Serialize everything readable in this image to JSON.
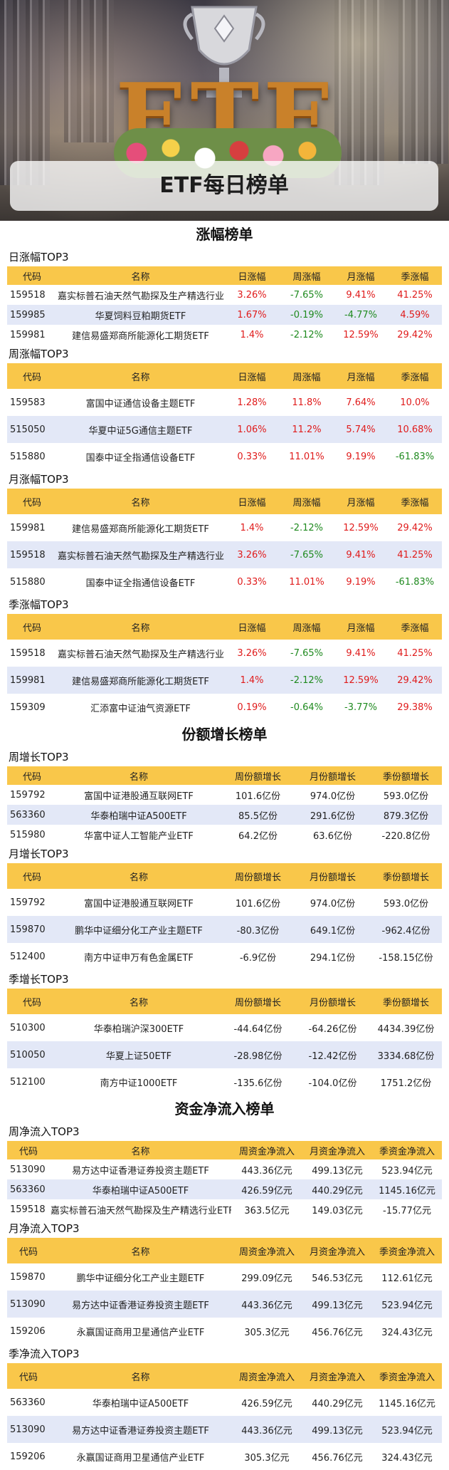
{
  "banner": {
    "logo_text": "ETF",
    "title": "ETF每日榜单"
  },
  "colors": {
    "header": "#f9c74a",
    "up": "#e01b1b",
    "down": "#1f8a1f",
    "alt_row": "#e3e8f7"
  },
  "sections": {
    "gain": {
      "title": "涨幅榜单",
      "headers": [
        "代码",
        "名称",
        "日涨幅",
        "周涨幅",
        "月涨幅",
        "季涨幅"
      ],
      "daily": {
        "title": "日涨幅TOP3",
        "rows": [
          {
            "code": "159518",
            "name": "嘉实标普石油天然气勘探及生产精选行业ETF",
            "d": "3.26%",
            "w": "-7.65%",
            "m": "9.41%",
            "q": "41.25%"
          },
          {
            "code": "159985",
            "name": "华夏饲料豆粕期货ETF",
            "d": "1.67%",
            "w": "-0.19%",
            "m": "-4.77%",
            "q": "4.59%"
          },
          {
            "code": "159981",
            "name": "建信易盛郑商所能源化工期货ETF",
            "d": "1.4%",
            "w": "-2.12%",
            "m": "12.59%",
            "q": "29.42%"
          }
        ]
      },
      "weekly": {
        "title": "周涨幅TOP3",
        "rows": [
          {
            "code": "159583",
            "name": "富国中证通信设备主题ETF",
            "d": "1.28%",
            "w": "11.8%",
            "m": "7.64%",
            "q": "10.0%"
          },
          {
            "code": "515050",
            "name": "华夏中证5G通信主题ETF",
            "d": "1.06%",
            "w": "11.2%",
            "m": "5.74%",
            "q": "10.68%"
          },
          {
            "code": "515880",
            "name": "国泰中证全指通信设备ETF",
            "d": "0.33%",
            "w": "11.01%",
            "m": "9.19%",
            "q": "-61.83%"
          }
        ]
      },
      "monthly": {
        "title": "月涨幅TOP3",
        "rows": [
          {
            "code": "159981",
            "name": "建信易盛郑商所能源化工期货ETF",
            "d": "1.4%",
            "w": "-2.12%",
            "m": "12.59%",
            "q": "29.42%"
          },
          {
            "code": "159518",
            "name": "嘉实标普石油天然气勘探及生产精选行业ETF",
            "d": "3.26%",
            "w": "-7.65%",
            "m": "9.41%",
            "q": "41.25%"
          },
          {
            "code": "515880",
            "name": "国泰中证全指通信设备ETF",
            "d": "0.33%",
            "w": "11.01%",
            "m": "9.19%",
            "q": "-61.83%"
          }
        ]
      },
      "quarterly": {
        "title": "季涨幅TOP3",
        "rows": [
          {
            "code": "159518",
            "name": "嘉实标普石油天然气勘探及生产精选行业ETF",
            "d": "3.26%",
            "w": "-7.65%",
            "m": "9.41%",
            "q": "41.25%"
          },
          {
            "code": "159981",
            "name": "建信易盛郑商所能源化工期货ETF",
            "d": "1.4%",
            "w": "-2.12%",
            "m": "12.59%",
            "q": "29.42%"
          },
          {
            "code": "159309",
            "name": "汇添富中证油气资源ETF",
            "d": "0.19%",
            "w": "-0.64%",
            "m": "-3.77%",
            "q": "29.38%"
          }
        ]
      }
    },
    "share": {
      "title": "份额增长榜单",
      "headers": [
        "代码",
        "名称",
        "周份额增长",
        "月份额增长",
        "季份额增长"
      ],
      "weekly": {
        "title": "周增长TOP3",
        "rows": [
          {
            "code": "159792",
            "name": "富国中证港股通互联网ETF",
            "w": "101.6亿份",
            "m": "974.0亿份",
            "q": "593.0亿份"
          },
          {
            "code": "563360",
            "name": "华泰柏瑞中证A500ETF",
            "w": "85.5亿份",
            "m": "291.6亿份",
            "q": "879.3亿份"
          },
          {
            "code": "515980",
            "name": "华富中证人工智能产业ETF",
            "w": "64.2亿份",
            "m": "63.6亿份",
            "q": "-220.8亿份"
          }
        ]
      },
      "monthly": {
        "title": "月增长TOP3",
        "rows": [
          {
            "code": "159792",
            "name": "富国中证港股通互联网ETF",
            "w": "101.6亿份",
            "m": "974.0亿份",
            "q": "593.0亿份"
          },
          {
            "code": "159870",
            "name": "鹏华中证细分化工产业主题ETF",
            "w": "-80.3亿份",
            "m": "649.1亿份",
            "q": "-962.4亿份"
          },
          {
            "code": "512400",
            "name": "南方中证申万有色金属ETF",
            "w": "-6.9亿份",
            "m": "294.1亿份",
            "q": "-158.15亿份"
          }
        ]
      },
      "quarterly": {
        "title": "季增长TOP3",
        "rows": [
          {
            "code": "510300",
            "name": "华泰柏瑞沪深300ETF",
            "w": "-44.64亿份",
            "m": "-64.26亿份",
            "q": "4434.39亿份"
          },
          {
            "code": "510050",
            "name": "华夏上证50ETF",
            "w": "-28.98亿份",
            "m": "-12.42亿份",
            "q": "3334.68亿份"
          },
          {
            "code": "512100",
            "name": "南方中证1000ETF",
            "w": "-135.6亿份",
            "m": "-104.0亿份",
            "q": "1751.2亿份"
          }
        ]
      }
    },
    "flow": {
      "title": "资金净流入榜单",
      "headers": [
        "代码",
        "名称",
        "周资金净流入",
        "月资金净流入",
        "季资金净流入"
      ],
      "weekly": {
        "title": "周净流入TOP3",
        "rows": [
          {
            "code": "513090",
            "name": "易方达中证香港证券投资主题ETF",
            "w": "443.36亿元",
            "m": "499.13亿元",
            "q": "523.94亿元"
          },
          {
            "code": "563360",
            "name": "华泰柏瑞中证A500ETF",
            "w": "426.59亿元",
            "m": "440.29亿元",
            "q": "1145.16亿元"
          },
          {
            "code": "159518",
            "name": "嘉实标普石油天然气勘探及生产精选行业ETF",
            "w": "363.5亿元",
            "m": "149.03亿元",
            "q": "-15.77亿元"
          }
        ]
      },
      "monthly": {
        "title": "月净流入TOP3",
        "rows": [
          {
            "code": "159870",
            "name": "鹏华中证细分化工产业主题ETF",
            "w": "299.09亿元",
            "m": "546.53亿元",
            "q": "112.61亿元"
          },
          {
            "code": "513090",
            "name": "易方达中证香港证券投资主题ETF",
            "w": "443.36亿元",
            "m": "499.13亿元",
            "q": "523.94亿元"
          },
          {
            "code": "159206",
            "name": "永赢国证商用卫星通信产业ETF",
            "w": "305.3亿元",
            "m": "456.76亿元",
            "q": "324.43亿元"
          }
        ]
      },
      "quarterly": {
        "title": "季净流入TOP3",
        "rows": [
          {
            "code": "563360",
            "name": "华泰柏瑞中证A500ETF",
            "w": "426.59亿元",
            "m": "440.29亿元",
            "q": "1145.16亿元"
          },
          {
            "code": "513090",
            "name": "易方达中证香港证券投资主题ETF",
            "w": "443.36亿元",
            "m": "499.13亿元",
            "q": "523.94亿元"
          },
          {
            "code": "159206",
            "name": "永赢国证商用卫星通信产业ETF",
            "w": "305.3亿元",
            "m": "456.76亿元",
            "q": "324.43亿元"
          }
        ]
      }
    }
  }
}
